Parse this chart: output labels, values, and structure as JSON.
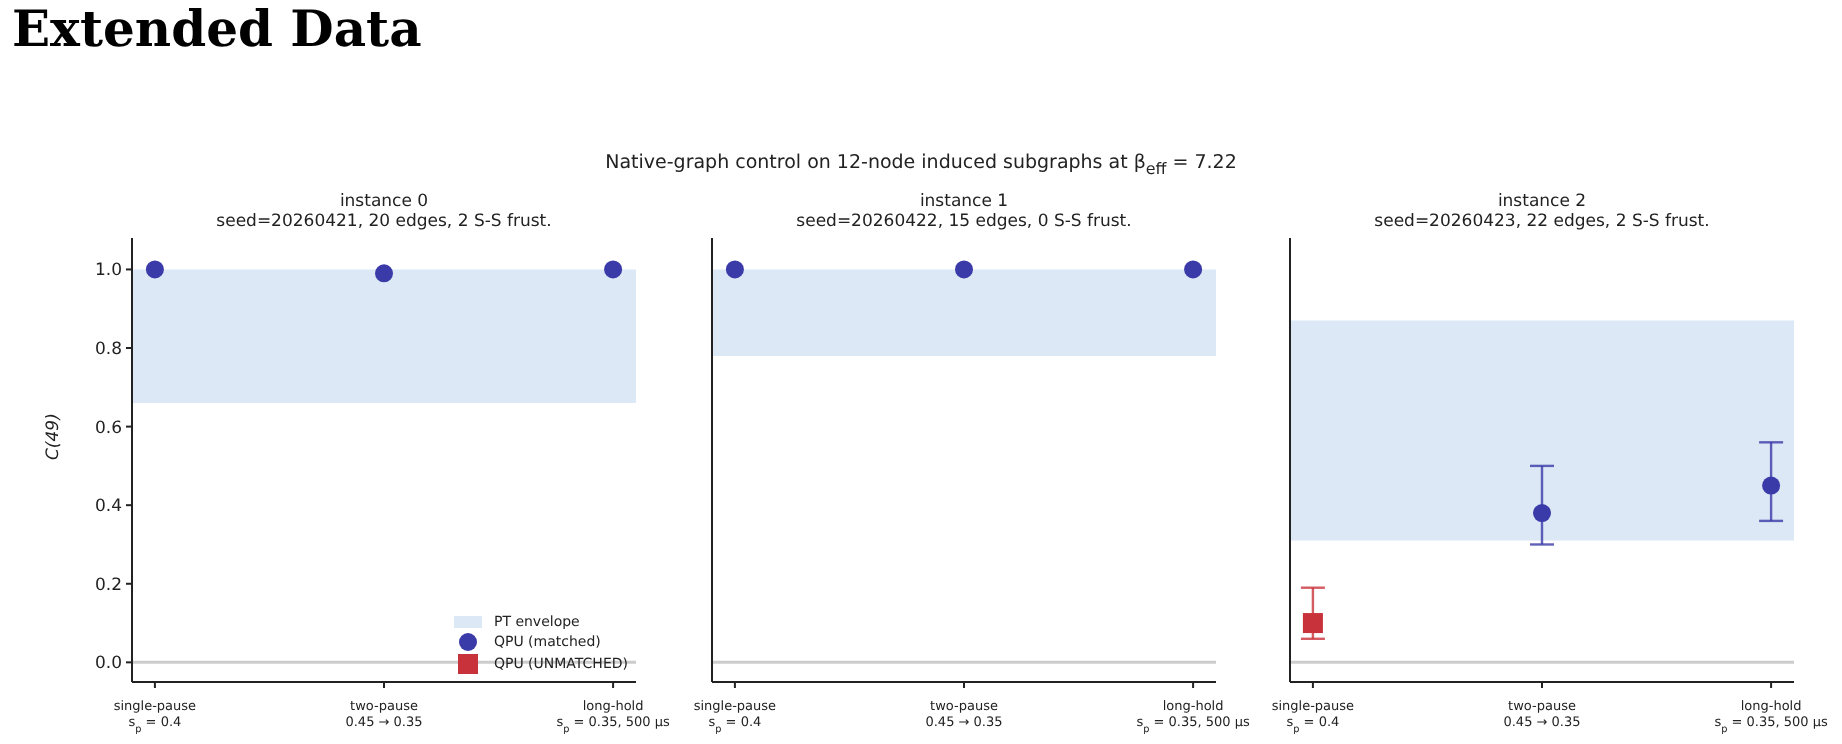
{
  "chart_data": [
    {
      "type": "scatter",
      "title": "instance 0",
      "subtitle": "seed=20260421, 20 edges, 2 S-S frust.",
      "ylabel": "C(49)",
      "annotations": [
        "Extended Data",
        "Native-graph control on 12-node induced subgraphs at β$_{eff}$ = 7.22"
      ],
      "categories": [
        "single-pause\ns$_{p}$ = 0.4",
        "two-pause\n0.45 → 0.35",
        "long-hold\ns$_{p}$ = 0.35, 500 μs"
      ],
      "series": [
        {
          "name": "QPU (matched)",
          "color": "#3a3aa8",
          "marker": "circle",
          "values": [
            1.0,
            0.99,
            1.0
          ]
        },
        {
          "name": "QPU (UNMATCHED)",
          "color": "#c8323a",
          "marker": "square",
          "values": [
            null,
            null,
            null
          ]
        }
      ],
      "ylim": [
        -0.05,
        1.08
      ],
      "yticks": [
        {
          "value": 0,
          "label": "0.0"
        },
        0.2,
        0.4,
        0.6,
        0.8,
        {
          "value": 1,
          "label": "1.0"
        }
      ],
      "bands": [
        {
          "axis": "y",
          "from": 0.66,
          "to": 1.0,
          "label": "PT envelope",
          "color": "#dce8f5"
        }
      ],
      "ref_lines": [
        {
          "axis": "y",
          "value": 0,
          "color": "#cccccc"
        }
      ],
      "grid": false,
      "legend": "bottom right"
    },
    {
      "type": "scatter",
      "title": "instance 1",
      "subtitle": "seed=20260422, 15 edges, 0 S-S frust.",
      "categories": [
        "single-pause\ns$_{p}$ = 0.4",
        "two-pause\n0.45 → 0.35",
        "long-hold\ns$_{p}$ = 0.35, 500 μs"
      ],
      "series": [
        {
          "color": "#3a3aa8",
          "marker": "circle",
          "values": [
            1.0,
            1.0,
            1.0
          ]
        }
      ],
      "ylim": [
        -0.05,
        1.08
      ],
      "yticks": [
        0,
        0.2,
        0.4,
        0.6,
        0.8,
        1
      ],
      "bands": [
        {
          "axis": "y",
          "from": 0.78,
          "to": 1.0,
          "color": "#dce8f5"
        }
      ],
      "ref_lines": [
        {
          "axis": "y",
          "value": 0,
          "color": "#cccccc"
        }
      ],
      "grid": false,
      "tick_labels": "x"
    },
    {
      "type": "scatter",
      "title": "instance 2",
      "subtitle": "seed=20260423, 22 edges, 2 S-S frust.",
      "categories": [
        "single-pause\ns$_{p}$ = 0.4",
        "two-pause\n0.45 → 0.35",
        "long-hold\ns$_{p}$ = 0.35, 500 μs"
      ],
      "series": [
        {
          "color": "#3a3aa8",
          "marker": "circle",
          "values": [
            null,
            0.38,
            0.45
          ],
          "errors": [
            null,
            [
              0.3,
              0.5
            ],
            [
              0.36,
              0.56
            ]
          ]
        },
        {
          "color": "#c8323a",
          "marker": "square",
          "values": [
            0.1,
            null,
            null
          ],
          "errors": [
            [
              0.06,
              0.19
            ],
            null,
            null
          ]
        }
      ],
      "ylim": [
        -0.05,
        1.08
      ],
      "yticks": [
        0,
        0.2,
        0.4,
        0.6,
        0.8,
        1
      ],
      "bands": [
        {
          "axis": "y",
          "from": 0.31,
          "to": 0.87,
          "color": "#dce8f5"
        }
      ],
      "ref_lines": [
        {
          "axis": "y",
          "value": 0,
          "color": "#cccccc"
        }
      ],
      "grid": false,
      "tick_labels": "x"
    }
  ]
}
